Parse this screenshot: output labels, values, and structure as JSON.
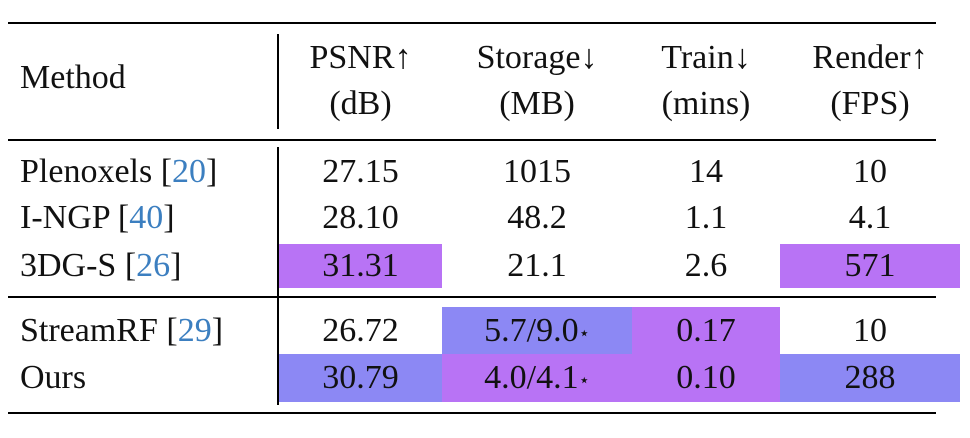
{
  "header": {
    "method": "Method",
    "psnr": [
      "PSNR↑",
      "(dB)"
    ],
    "storage": [
      "Storage↓",
      "(MB)"
    ],
    "train": [
      "Train↓",
      "(mins)"
    ],
    "render": [
      "Render↑",
      "(FPS)"
    ]
  },
  "rows": [
    {
      "name": "Plenoxels [",
      "ref": "20",
      "close": "]",
      "psnr": "27.15",
      "storage": "1015",
      "train": "14",
      "render": "10"
    },
    {
      "name": "I-NGP [",
      "ref": "40",
      "close": "]",
      "psnr": "28.10",
      "storage": "48.2",
      "train": "1.1",
      "render": "4.1"
    },
    {
      "name": "3DG-S [",
      "ref": "26",
      "close": "]",
      "psnr": "31.31",
      "storage": "21.1",
      "train": "2.6",
      "render": "571"
    },
    {
      "name": "StreamRF [",
      "ref": "29",
      "close": "]",
      "psnr": "26.72",
      "storage": "5.7/9.0",
      "storage_mark": "⋆",
      "train": "0.17",
      "render": "10"
    },
    {
      "name": "Ours",
      "psnr": "30.79",
      "storage": "4.0/4.1",
      "storage_mark": "⋆",
      "train": "0.10",
      "render": "288"
    }
  ],
  "colors": {
    "best": "#b873f5",
    "second": "#8c88f4",
    "ref_link": "#3c7fc0"
  }
}
